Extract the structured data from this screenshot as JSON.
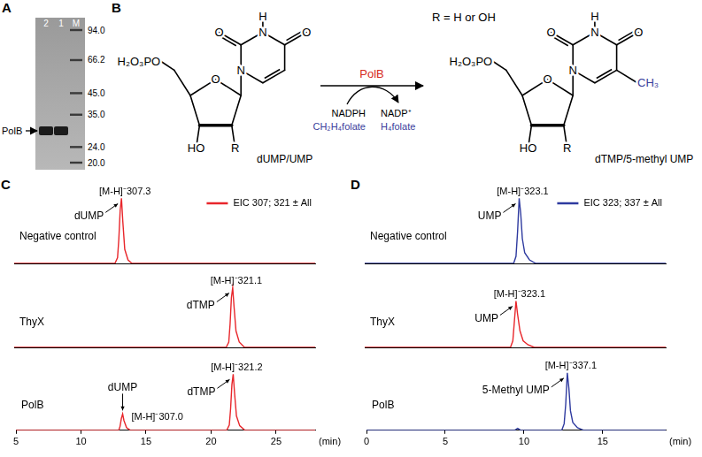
{
  "panel_labels": [
    "A",
    "B",
    "C",
    "D"
  ],
  "gel": {
    "lanes": [
      "2",
      "1",
      "M"
    ],
    "markers": [
      {
        "value": 94,
        "label": "94.0"
      },
      {
        "value": 66.2,
        "label": "66.2"
      },
      {
        "value": 45,
        "label": "45.0"
      },
      {
        "value": 35,
        "label": "35.0"
      },
      {
        "value": 24,
        "label": "24.0"
      },
      {
        "value": 20,
        "label": "20.0"
      }
    ],
    "band": {
      "label": "PolB",
      "kda": 29,
      "lanes": [
        "2",
        "1"
      ]
    }
  },
  "scheme": {
    "substrate": "dUMP/UMP",
    "product": "dTMP/5-methyl UMP",
    "enzyme": {
      "text": "PolB",
      "color": "#d62a20"
    },
    "reactants": [
      {
        "text": "NADPH"
      },
      {
        "text": "CH₂H₄folate",
        "color": "#3a3d9c"
      }
    ],
    "products": [
      {
        "text": "NADP⁺"
      },
      {
        "text": "H₄folate",
        "color": "#3a3d9c"
      }
    ],
    "note": "R = H or OH",
    "atoms": {
      "phosphate": "H₂O₃PO",
      "hydroxyl": "HO",
      "r": "R",
      "nitrogen": "N",
      "oxygen": "O",
      "hydrogen": "H",
      "methyl": {
        "text": "CH₃",
        "color": "#3a3d9c"
      }
    }
  },
  "chart_data": [
    {
      "panel": "C",
      "type": "line",
      "title": "Negative control",
      "xlim": [
        5,
        28
      ],
      "xticks": [
        5,
        10,
        15,
        20,
        25
      ],
      "ylim": [
        0,
        100
      ],
      "tick_labels": false,
      "grid": false,
      "legend": "upper right",
      "x": [
        5,
        12.7,
        12.9,
        13.0,
        13.1,
        13.2,
        13.3,
        13.45,
        13.7,
        14.0,
        28
      ],
      "series": [
        {
          "name": "EIC 307; 321 ± All",
          "color": "#e8262b",
          "values": [
            0,
            0,
            8,
            35,
            75,
            92,
            60,
            20,
            5,
            0,
            0
          ]
        }
      ],
      "peaks": [
        {
          "rt": 13.2,
          "label": "[M-H]⁻307.3",
          "compound": "dUMP"
        }
      ]
    },
    {
      "panel": "C",
      "type": "line",
      "title": "ThyX",
      "xlim": [
        5,
        28
      ],
      "xticks": [
        5,
        10,
        15,
        20,
        25
      ],
      "ylim": [
        0,
        100
      ],
      "tick_labels": false,
      "grid": false,
      "x": [
        5,
        21.2,
        21.4,
        21.5,
        21.6,
        21.7,
        21.8,
        21.95,
        22.2,
        22.6,
        28
      ],
      "series": [
        {
          "color": "#e8262b",
          "values": [
            0,
            0,
            8,
            35,
            75,
            90,
            62,
            25,
            8,
            0,
            0
          ]
        }
      ],
      "peaks": [
        {
          "rt": 21.7,
          "label": "[M-H]⁻321.1",
          "compound": "dTMP"
        }
      ]
    },
    {
      "panel": "C",
      "type": "line",
      "title": "PolB",
      "xlim": [
        5,
        28
      ],
      "xticks": [
        5,
        10,
        15,
        20,
        25
      ],
      "ylim": [
        0,
        100
      ],
      "tick_labels": "x",
      "grid": false,
      "x_label": "(min)",
      "x": [
        5,
        12.9,
        13.0,
        13.1,
        13.2,
        13.3,
        13.5,
        13.8,
        21.2,
        21.4,
        21.5,
        21.6,
        21.7,
        21.8,
        21.95,
        22.2,
        22.6,
        28
      ],
      "series": [
        {
          "color": "#e8262b",
          "values": [
            0,
            0,
            6,
            18,
            25,
            15,
            4,
            0,
            0,
            8,
            33,
            70,
            86,
            58,
            22,
            7,
            0,
            0
          ]
        }
      ],
      "peaks": [
        {
          "rt": 13.2,
          "label": "[M-H]⁻307.0",
          "compound": "dUMP"
        },
        {
          "rt": 21.7,
          "label": "[M-H]⁻321.2",
          "compound": "dTMP"
        }
      ]
    },
    {
      "panel": "D",
      "type": "line",
      "title": "Negative control",
      "xlim": [
        0,
        19
      ],
      "xticks": [
        0,
        5,
        10,
        15
      ],
      "ylim": [
        0,
        100
      ],
      "tick_labels": false,
      "grid": false,
      "legend": "upper right",
      "x": [
        0,
        9.4,
        9.55,
        9.65,
        9.75,
        9.85,
        9.95,
        10.1,
        10.4,
        10.8,
        19
      ],
      "series": [
        {
          "name": "EIC 323; 337 ± All",
          "color": "#2e3a9f",
          "values": [
            0,
            0,
            10,
            45,
            92,
            70,
            35,
            15,
            5,
            0,
            0
          ]
        }
      ],
      "peaks": [
        {
          "rt": 9.75,
          "label": "[M-H]⁻323.1",
          "compound": "UMP"
        }
      ]
    },
    {
      "panel": "D",
      "type": "line",
      "title": "ThyX",
      "xlim": [
        0,
        19
      ],
      "xticks": [
        0,
        5,
        10,
        15
      ],
      "ylim": [
        0,
        100
      ],
      "tick_labels": false,
      "grid": false,
      "x": [
        0,
        9.2,
        9.35,
        9.45,
        9.55,
        9.65,
        9.8,
        10.0,
        10.3,
        10.7,
        19
      ],
      "series": [
        {
          "color": "#e8262b",
          "values": [
            0,
            0,
            10,
            40,
            70,
            50,
            25,
            10,
            4,
            0,
            0
          ]
        }
      ],
      "peaks": [
        {
          "rt": 9.55,
          "label": "[M-H]⁻323.1",
          "compound": "UMP"
        }
      ]
    },
    {
      "panel": "D",
      "type": "line",
      "title": "PolB",
      "xlim": [
        0,
        19
      ],
      "xticks": [
        0,
        5,
        10,
        15
      ],
      "ylim": [
        0,
        100
      ],
      "tick_labels": "x",
      "grid": false,
      "x_label": "(min)",
      "x": [
        0,
        9.4,
        9.6,
        9.8,
        12.4,
        12.55,
        12.65,
        12.75,
        12.85,
        12.95,
        13.1,
        13.4,
        13.8,
        19
      ],
      "series": [
        {
          "color": "#2e3a9f",
          "values": [
            0,
            0,
            3,
            0,
            0,
            10,
            40,
            88,
            65,
            30,
            12,
            4,
            0,
            0
          ]
        }
      ],
      "peaks": [
        {
          "rt": 12.75,
          "label": "[M-H]⁻337.1",
          "compound": "5-Methyl UMP"
        }
      ]
    }
  ]
}
